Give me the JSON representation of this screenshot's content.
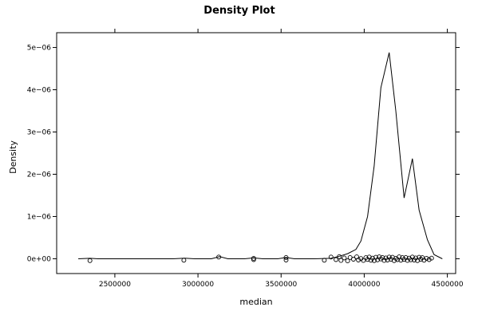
{
  "chart_data": {
    "type": "line",
    "title": "Density Plot",
    "xlabel": "median",
    "ylabel": "Density",
    "xlim": [
      2150000,
      4550000
    ],
    "ylim": [
      -3.5e-07,
      5.35e-06
    ],
    "x_ticks": [
      2500000,
      3000000,
      3500000,
      4000000,
      4500000
    ],
    "x_tick_labels": [
      "2500000",
      "3000000",
      "3500000",
      "4000000",
      "4500000"
    ],
    "y_ticks": [
      0,
      1e-06,
      2e-06,
      3e-06,
      4e-06,
      5e-06
    ],
    "y_tick_labels": [
      "0e+00",
      "1e−06",
      "2e−06",
      "3e−06",
      "4e−06",
      "5e−06"
    ],
    "grid": false,
    "series": [
      {
        "values": [
          [
            2280000,
            0
          ],
          [
            2350000,
            1e-08
          ],
          [
            2400000,
            0
          ],
          [
            2600000,
            0
          ],
          [
            2850000,
            0
          ],
          [
            2920000,
            1.5e-08
          ],
          [
            2980000,
            0
          ],
          [
            3080000,
            0
          ],
          [
            3130000,
            5e-08
          ],
          [
            3180000,
            0
          ],
          [
            3280000,
            0
          ],
          [
            3335000,
            2e-08
          ],
          [
            3390000,
            0
          ],
          [
            3480000,
            0
          ],
          [
            3530000,
            3e-08
          ],
          [
            3580000,
            0
          ],
          [
            3700000,
            0
          ],
          [
            3800000,
            1e-08
          ],
          [
            3850000,
            6e-08
          ],
          [
            3900000,
            1.2e-07
          ],
          [
            3950000,
            2.2e-07
          ],
          [
            3980000,
            4.2e-07
          ],
          [
            4020000,
            1e-06
          ],
          [
            4060000,
            2.2e-06
          ],
          [
            4100000,
            4.05e-06
          ],
          [
            4150000,
            4.88e-06
          ],
          [
            4190000,
            3.5e-06
          ],
          [
            4240000,
            1.44e-06
          ],
          [
            4290000,
            2.37e-06
          ],
          [
            4330000,
            1.15e-06
          ],
          [
            4380000,
            4.5e-07
          ],
          [
            4420000,
            1e-07
          ],
          [
            4470000,
            0
          ]
        ]
      }
    ],
    "rug_points": [
      [
        2350000,
        -4.5e-08
      ],
      [
        2915000,
        -3.5e-08
      ],
      [
        3125000,
        4e-08
      ],
      [
        3335000,
        -2e-08
      ],
      [
        3335000,
        1e-08
      ],
      [
        3530000,
        -3e-08
      ],
      [
        3530000,
        3e-08
      ],
      [
        3760000,
        -3.5e-08
      ],
      [
        3800000,
        4e-08
      ],
      [
        3830000,
        -2e-08
      ],
      [
        3850000,
        5e-08
      ],
      [
        3860000,
        -4e-08
      ],
      [
        3880000,
        2e-08
      ],
      [
        3900000,
        -5e-08
      ],
      [
        3915000,
        3e-08
      ],
      [
        3935000,
        -1e-08
      ],
      [
        3955000,
        4.5e-08
      ],
      [
        3965000,
        -3e-08
      ],
      [
        3980000,
        5e-09
      ],
      [
        3995000,
        -4e-08
      ],
      [
        4010000,
        2.5e-08
      ],
      [
        4020000,
        -1.5e-08
      ],
      [
        4030000,
        4e-08
      ],
      [
        4040000,
        -3.5e-08
      ],
      [
        4050000,
        1.5e-08
      ],
      [
        4060000,
        -4.5e-08
      ],
      [
        4070000,
        3.5e-08
      ],
      [
        4080000,
        -2.5e-08
      ],
      [
        4090000,
        4.5e-08
      ],
      [
        4100000,
        -5e-09
      ],
      [
        4110000,
        3e-08
      ],
      [
        4120000,
        -4e-08
      ],
      [
        4130000,
        2e-08
      ],
      [
        4140000,
        -3e-08
      ],
      [
        4150000,
        4e-08
      ],
      [
        4160000,
        -1e-08
      ],
      [
        4170000,
        3.5e-08
      ],
      [
        4180000,
        -4.5e-08
      ],
      [
        4190000,
        1e-08
      ],
      [
        4200000,
        -2e-08
      ],
      [
        4210000,
        4.5e-08
      ],
      [
        4220000,
        -3.5e-08
      ],
      [
        4230000,
        2.5e-08
      ],
      [
        4240000,
        -1.5e-08
      ],
      [
        4250000,
        3e-08
      ],
      [
        4260000,
        -4e-08
      ],
      [
        4270000,
        1.5e-08
      ],
      [
        4280000,
        -2.5e-08
      ],
      [
        4290000,
        4e-08
      ],
      [
        4300000,
        -3e-08
      ],
      [
        4310000,
        2e-08
      ],
      [
        4320000,
        -4.5e-08
      ],
      [
        4330000,
        3.5e-08
      ],
      [
        4340000,
        -1e-08
      ],
      [
        4350000,
        2.5e-08
      ],
      [
        4360000,
        -3.5e-08
      ],
      [
        4375000,
        1e-08
      ],
      [
        4390000,
        -2e-08
      ],
      [
        4405000,
        1.5e-08
      ]
    ]
  }
}
